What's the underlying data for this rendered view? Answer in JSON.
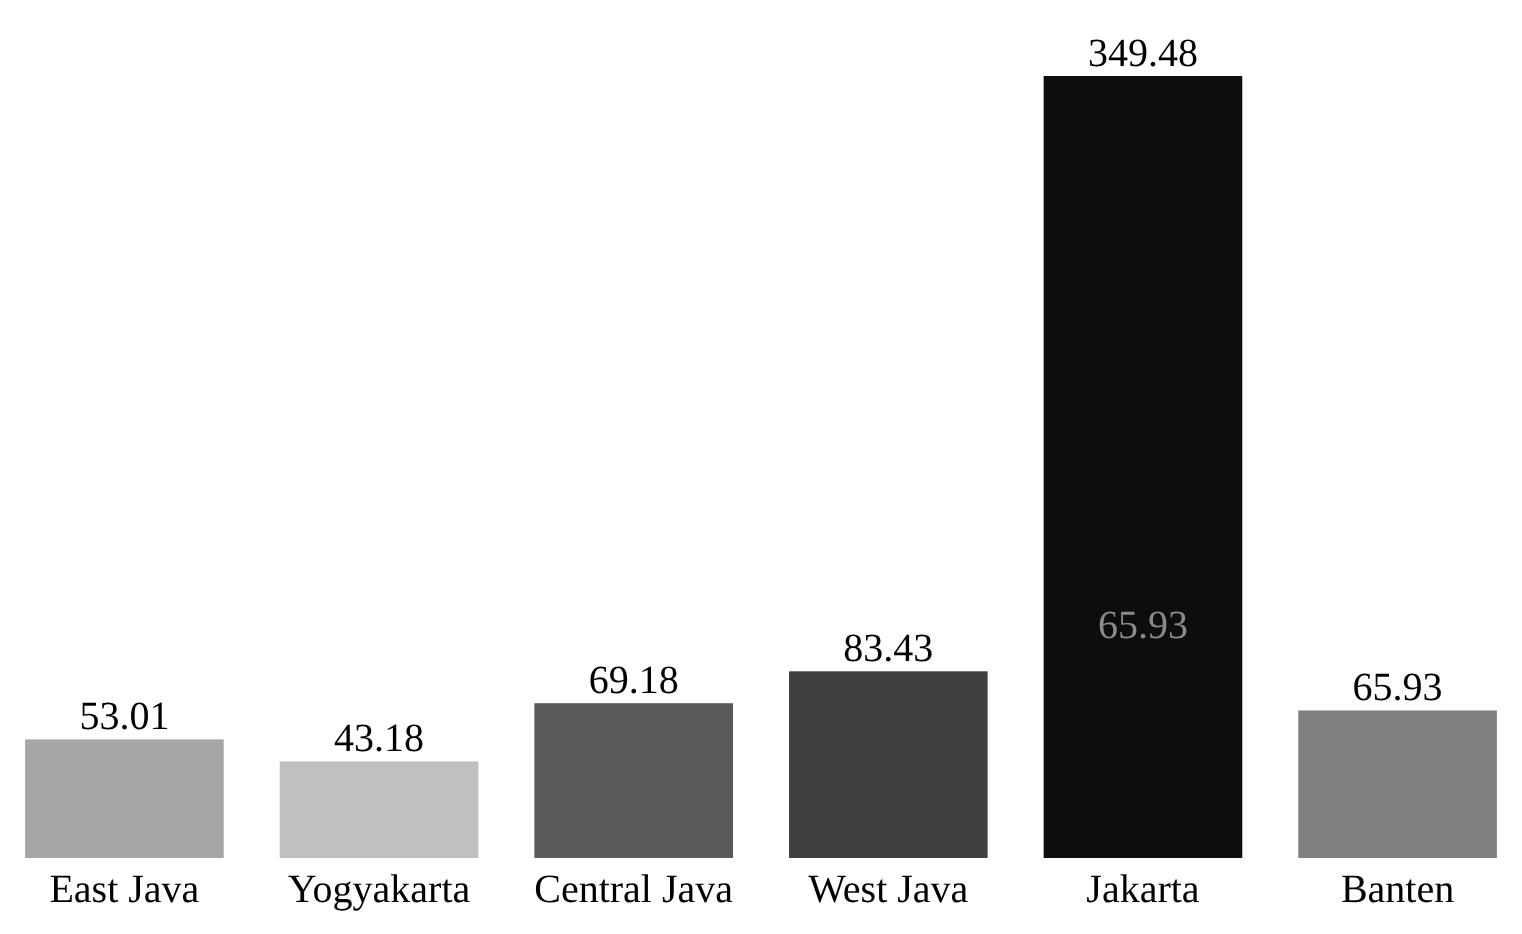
{
  "chart_data": {
    "type": "bar",
    "categories": [
      "East Java",
      "Yogyakarta",
      "Central Java",
      "West Java",
      "Jakarta",
      "Banten"
    ],
    "values": [
      53.01,
      43.18,
      69.18,
      83.43,
      349.48,
      65.93
    ],
    "colors": [
      "#a6a6a6",
      "#c0c0c0",
      "#595959",
      "#404040",
      "#0d0d0d",
      "#808080"
    ],
    "data_labels": true,
    "annotations": [
      "65.93"
    ]
  }
}
